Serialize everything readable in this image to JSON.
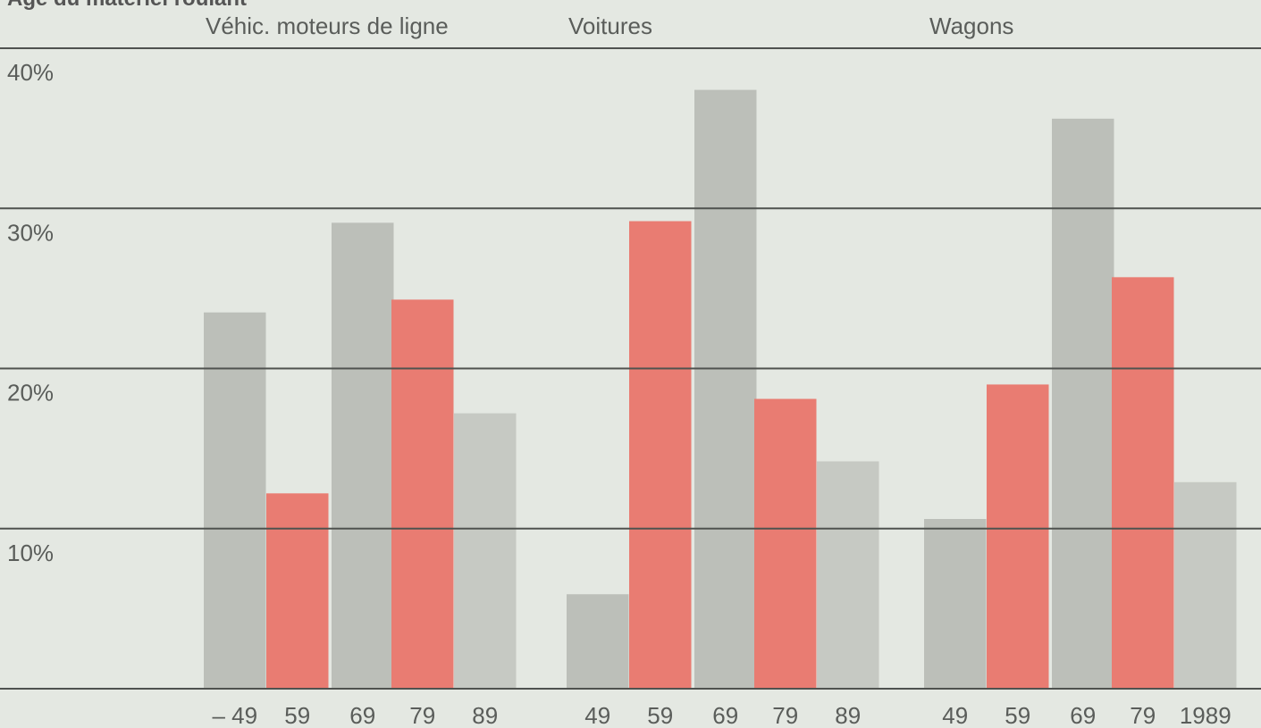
{
  "chart_data": {
    "type": "bar",
    "title": "Age du matériel roulant",
    "groups": [
      {
        "name": "Véhic. moteurs de ligne",
        "categories": [
          "– 49",
          "59",
          "69",
          "79",
          "89"
        ],
        "values": [
          23.5,
          12.2,
          29.1,
          24.3,
          17.2
        ],
        "colors": [
          "#bcbfb9",
          "#e97c72",
          "#bcbfb9",
          "#e97c72",
          "#c6c9c3"
        ]
      },
      {
        "name": "Voitures",
        "categories": [
          "49",
          "59",
          "69",
          "79",
          "89"
        ],
        "values": [
          5.9,
          29.2,
          37.4,
          18.1,
          14.2
        ],
        "colors": [
          "#bcbfb9",
          "#e97c72",
          "#bcbfb9",
          "#e97c72",
          "#c6c9c3"
        ]
      },
      {
        "name": "Wagons",
        "categories": [
          "49",
          "59",
          "69",
          "79",
          "1989"
        ],
        "values": [
          10.6,
          19.0,
          35.6,
          25.7,
          12.9
        ],
        "colors": [
          "#bcbfb9",
          "#e97c72",
          "#bcbfb9",
          "#e97c72",
          "#c6c9c3"
        ]
      }
    ],
    "ylim": [
      0,
      40
    ],
    "yticks": [
      {
        "value": 10,
        "label": "10%"
      },
      {
        "value": 20,
        "label": "20%"
      },
      {
        "value": 30,
        "label": "30%"
      },
      {
        "value": 40,
        "label": "40%"
      }
    ],
    "grid": true
  }
}
